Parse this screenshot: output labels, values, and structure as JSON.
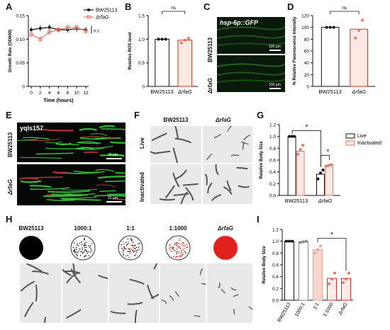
{
  "panels": {
    "A": {
      "label": "A"
    },
    "B": {
      "label": "B"
    },
    "C": {
      "label": "C"
    },
    "D": {
      "label": "D"
    },
    "E": {
      "label": "E"
    },
    "F": {
      "label": "F"
    },
    "G": {
      "label": "G"
    },
    "H": {
      "label": "H"
    },
    "I": {
      "label": "I"
    }
  },
  "micro": {
    "C": {
      "title": "hsp-6p::GFP",
      "row1": "BW25113",
      "row2": "ΔrfaG",
      "scale": "100 µm"
    },
    "E": {
      "title": "yqIs157",
      "row1": "BW25113",
      "row2": "ΔrfaG",
      "scale": "10 µm"
    },
    "F": {
      "col1": "BW25113",
      "col2": "ΔrfaG",
      "row1": "Live",
      "row2": "Inactivated"
    },
    "H": {
      "dishes": [
        "BW25113",
        "1000:1",
        "1:1",
        "1:1000",
        "ΔrfaG"
      ]
    }
  },
  "colors": {
    "black": "#111111",
    "red": "#c0392b",
    "pink": "#e8a598",
    "salmon": "#e07a6a",
    "green": "#3ccf3c"
  },
  "chart_data": [
    {
      "id": "A",
      "type": "line",
      "ylabel": "Growth Rate (OD600)",
      "xlabel": "Time (hours)",
      "x": [
        0,
        2,
        4,
        6,
        8,
        10,
        12
      ],
      "xticks": [
        "0",
        "2",
        "4",
        "6",
        "8",
        "10",
        "12"
      ],
      "ylim": [
        0,
        0.15
      ],
      "yticks": [
        "0",
        "0.05",
        "0.10",
        "0.15"
      ],
      "series": [
        {
          "name": "BW25113",
          "values": [
            0.12,
            0.123,
            0.125,
            0.12,
            0.12,
            0.122,
            0.12
          ]
        },
        {
          "name": "ΔrfaG",
          "values": [
            0.11,
            0.1,
            0.115,
            0.12,
            0.125,
            0.125,
            0.117
          ]
        }
      ],
      "annotation": "n.s"
    },
    {
      "id": "B",
      "type": "bar",
      "ylabel": "Relative ROS level",
      "categories": [
        "BW25113",
        "ΔrfaG"
      ],
      "values": [
        1.0,
        0.98
      ],
      "ylim": [
        0,
        1.5
      ],
      "yticks": [
        "0",
        "0.5",
        "1.0",
        "1.5"
      ],
      "annotation": "ns"
    },
    {
      "id": "D",
      "type": "bar",
      "ylabel": "% Relative Fluorescence Intensity",
      "categories": [
        "BW25113",
        "ΔrfaG"
      ],
      "values": [
        100,
        97
      ],
      "ylim": [
        0,
        120
      ],
      "yticks": [
        "0",
        "20",
        "40",
        "60",
        "80",
        "100",
        "120"
      ],
      "annotation": "ns"
    },
    {
      "id": "G",
      "type": "bar",
      "ylabel": "Relative Body Size",
      "categories": [
        "BW25113",
        "ΔrfaG"
      ],
      "series": [
        {
          "name": "Live",
          "values": [
            1.0,
            0.36
          ]
        },
        {
          "name": "Inactivated",
          "values": [
            0.75,
            0.51
          ]
        }
      ],
      "ylim": [
        0,
        1.2
      ],
      "yticks": [
        "0.0",
        "0.2",
        "0.4",
        "0.6",
        "0.8",
        "1.0",
        "1.2"
      ],
      "annotations": [
        "*",
        "*"
      ]
    },
    {
      "id": "I",
      "type": "bar",
      "ylabel": "Relative Body Size",
      "categories": [
        "BW25113",
        "1000:1",
        "1:1",
        "1:1000",
        "ΔrfaG"
      ],
      "values": [
        1.0,
        0.99,
        0.86,
        0.37,
        0.37
      ],
      "ylim": [
        0,
        1.2
      ],
      "yticks": [
        "0.0",
        "0.2",
        "0.4",
        "0.6",
        "0.8",
        "1.0",
        "1.2"
      ],
      "annotation": "*"
    }
  ]
}
